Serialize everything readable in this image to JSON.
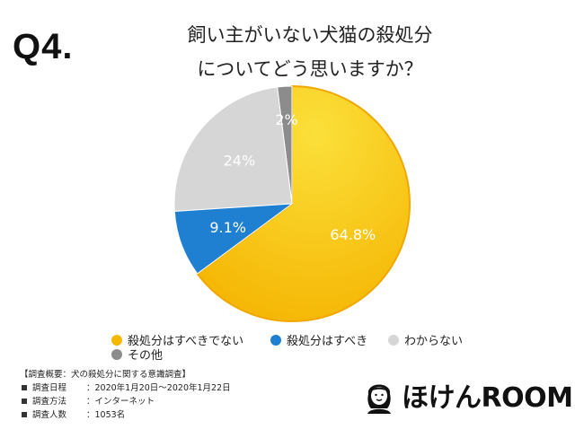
{
  "question_number": "Q4.",
  "title": {
    "line1": "飼い主がいない犬猫の殺処分",
    "line2": "についてどう思いますか？"
  },
  "chart_data": {
    "type": "pie",
    "slices": [
      {
        "label": "殺処分はすべきでない",
        "value": 64.8,
        "display": "64.8%",
        "color": "#f5b800"
      },
      {
        "label": "殺処分はすべき",
        "value": 9.1,
        "display": "9.1%",
        "color": "#1f7fd1"
      },
      {
        "label": "わからない",
        "value": 24,
        "display": "24%",
        "color": "#d6d6d6"
      },
      {
        "label": "その他",
        "value": 2,
        "display": "2%",
        "color": "#8c8c8c"
      }
    ],
    "start": "counterclockwise from top: その他, わからない, 殺処分はすべき; 殺処分はすべきでない clockwise from top"
  },
  "legend": [
    {
      "label": "殺処分はすべきでない",
      "color": "#f5b800"
    },
    {
      "label": "殺処分はすべき",
      "color": "#1f7fd1"
    },
    {
      "label": "わからない",
      "color": "#d6d6d6"
    },
    {
      "label": "その他",
      "color": "#8c8c8c"
    }
  ],
  "survey": {
    "heading": "【調査概要：犬の殺処分に関する意識調査】",
    "rows": [
      {
        "key": "調査日程",
        "value": "：2020年1月20日〜2020年1月22日"
      },
      {
        "key": "調査方法",
        "value": "：インターネット"
      },
      {
        "key": "調査人数",
        "value": "：1053名"
      }
    ]
  },
  "brand": {
    "name": "ほけんROOM",
    "icon": "person-face-icon"
  }
}
